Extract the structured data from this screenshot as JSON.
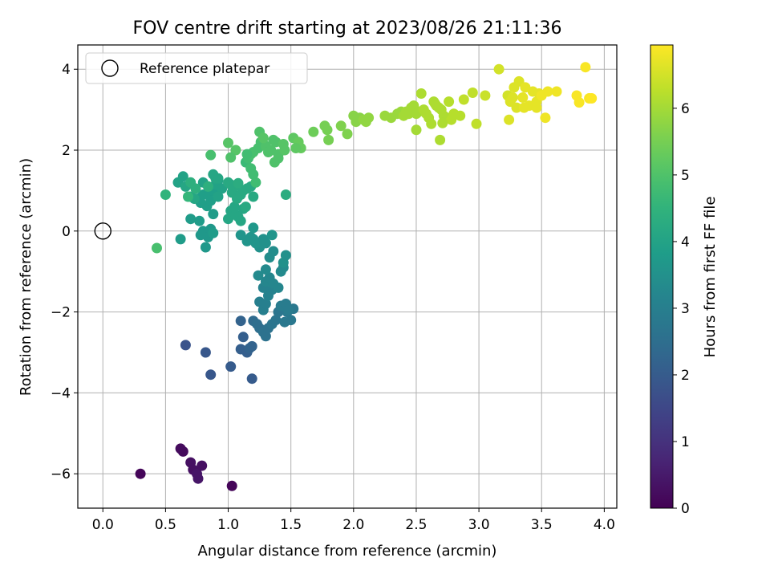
{
  "chart_data": {
    "type": "scatter",
    "title": "FOV centre drift starting at 2023/08/26 21:11:36",
    "xlabel": "Angular distance from reference (arcmin)",
    "ylabel": "Rotation from reference (arcmin)",
    "xlim": [
      -0.2,
      4.1
    ],
    "ylim": [
      -6.85,
      4.6
    ],
    "xticks": [
      0.0,
      0.5,
      1.0,
      1.5,
      2.0,
      2.5,
      3.0,
      3.5,
      4.0
    ],
    "xtick_labels": [
      "0.0",
      "0.5",
      "1.0",
      "1.5",
      "2.0",
      "2.5",
      "3.0",
      "3.5",
      "4.0"
    ],
    "yticks": [
      -6,
      -4,
      -2,
      0,
      2,
      4
    ],
    "ytick_labels": [
      "−6",
      "−4",
      "−2",
      "0",
      "2",
      "4"
    ],
    "grid": true,
    "colormap": "viridis",
    "colorbar": {
      "label": "Hours from first FF file",
      "range": [
        0,
        6.95
      ],
      "ticks": [
        0,
        1,
        2,
        3,
        4,
        5,
        6
      ],
      "tick_labels": [
        "0",
        "1",
        "2",
        "3",
        "4",
        "5",
        "6"
      ]
    },
    "legend": {
      "placement": "upper-left",
      "entries": [
        {
          "label": "Reference platepar",
          "marker": "open-circle"
        }
      ]
    },
    "reference_point": {
      "x": 0.0,
      "y": 0.0
    },
    "points": [
      [
        0.3,
        -6.0,
        0.1
      ],
      [
        0.62,
        -5.38,
        0.2
      ],
      [
        0.64,
        -5.45,
        0.2
      ],
      [
        0.7,
        -5.72,
        0.3
      ],
      [
        0.72,
        -5.9,
        0.3
      ],
      [
        0.75,
        -6.0,
        0.4
      ],
      [
        0.76,
        -6.12,
        0.4
      ],
      [
        0.79,
        -5.8,
        0.3
      ],
      [
        1.03,
        -6.3,
        0.1
      ],
      [
        0.66,
        -2.82,
        1.8
      ],
      [
        0.82,
        -3.0,
        1.9
      ],
      [
        0.86,
        -3.55,
        1.9
      ],
      [
        1.02,
        -3.35,
        2.0
      ],
      [
        1.19,
        -3.65,
        2.0
      ],
      [
        1.1,
        -2.92,
        2.1
      ],
      [
        1.12,
        -2.62,
        2.1
      ],
      [
        1.15,
        -3.0,
        2.1
      ],
      [
        1.17,
        -2.9,
        2.2
      ],
      [
        1.19,
        -2.85,
        2.2
      ],
      [
        1.1,
        -2.22,
        2.2
      ],
      [
        1.2,
        -2.22,
        2.4
      ],
      [
        1.23,
        -2.3,
        2.5
      ],
      [
        1.25,
        -2.4,
        2.5
      ],
      [
        1.28,
        -2.5,
        2.6
      ],
      [
        1.3,
        -2.6,
        2.6
      ],
      [
        1.32,
        -2.4,
        2.6
      ],
      [
        1.35,
        -2.3,
        2.7
      ],
      [
        1.38,
        -2.2,
        2.7
      ],
      [
        1.4,
        -2.0,
        2.7
      ],
      [
        1.45,
        -2.25,
        2.8
      ],
      [
        1.47,
        -2.0,
        2.8
      ],
      [
        1.5,
        -2.2,
        2.8
      ],
      [
        1.52,
        -1.92,
        2.8
      ],
      [
        1.42,
        -1.85,
        2.9
      ],
      [
        1.46,
        -1.8,
        2.9
      ],
      [
        1.48,
        -1.95,
        2.9
      ],
      [
        1.25,
        -1.75,
        3.0
      ],
      [
        1.28,
        -1.95,
        3.0
      ],
      [
        1.3,
        -1.8,
        3.0
      ],
      [
        1.32,
        -1.6,
        3.1
      ],
      [
        1.35,
        -1.45,
        3.1
      ],
      [
        1.28,
        -1.4,
        3.1
      ],
      [
        1.3,
        -1.25,
        3.2
      ],
      [
        1.33,
        -1.15,
        3.2
      ],
      [
        1.36,
        -1.3,
        3.2
      ],
      [
        1.4,
        -1.4,
        3.2
      ],
      [
        1.42,
        -1.0,
        3.3
      ],
      [
        1.44,
        -0.9,
        3.3
      ],
      [
        1.24,
        -1.1,
        3.3
      ],
      [
        1.3,
        -0.95,
        3.3
      ],
      [
        1.33,
        -0.65,
        3.4
      ],
      [
        1.36,
        -0.5,
        3.4
      ],
      [
        1.3,
        -0.3,
        3.5
      ],
      [
        1.28,
        -0.2,
        3.5
      ],
      [
        1.25,
        -0.4,
        3.5
      ],
      [
        1.22,
        -0.3,
        3.6
      ],
      [
        1.2,
        -0.2,
        3.6
      ],
      [
        1.18,
        -0.15,
        3.6
      ],
      [
        1.15,
        -0.25,
        3.6
      ],
      [
        1.1,
        -0.1,
        3.6
      ],
      [
        1.35,
        -0.1,
        3.6
      ],
      [
        1.44,
        -0.78,
        3.5
      ],
      [
        1.46,
        -0.6,
        3.5
      ],
      [
        1.2,
        0.08,
        3.7
      ],
      [
        1.29,
        -0.28,
        3.5
      ],
      [
        0.78,
        -0.1,
        3.7
      ],
      [
        0.8,
        0.0,
        3.7
      ],
      [
        0.82,
        -0.4,
        3.7
      ],
      [
        0.84,
        -0.15,
        3.7
      ],
      [
        0.86,
        0.05,
        3.7
      ],
      [
        0.88,
        -0.05,
        3.8
      ],
      [
        0.77,
        0.25,
        3.8
      ],
      [
        0.7,
        0.3,
        3.8
      ],
      [
        0.62,
        -0.2,
        3.8
      ],
      [
        0.88,
        0.42,
        3.8
      ],
      [
        0.83,
        0.62,
        3.9
      ],
      [
        0.78,
        0.7,
        3.9
      ],
      [
        0.76,
        0.8,
        3.9
      ],
      [
        0.8,
        0.9,
        3.9
      ],
      [
        0.85,
        0.95,
        3.9
      ],
      [
        0.88,
        1.0,
        3.9
      ],
      [
        0.86,
        0.75,
        3.9
      ],
      [
        0.9,
        1.15,
        4.0
      ],
      [
        0.92,
        1.25,
        4.0
      ],
      [
        0.95,
        1.05,
        4.0
      ],
      [
        0.92,
        0.85,
        4.0
      ],
      [
        0.8,
        1.2,
        4.0
      ],
      [
        0.84,
        1.1,
        4.0
      ],
      [
        0.6,
        1.2,
        4.0
      ],
      [
        0.64,
        1.35,
        4.0
      ],
      [
        0.66,
        1.1,
        4.1
      ],
      [
        0.7,
        0.85,
        4.1
      ],
      [
        0.73,
        0.8,
        4.1
      ],
      [
        0.88,
        1.4,
        4.1
      ],
      [
        0.9,
        1.3,
        4.1
      ],
      [
        0.92,
        1.3,
        4.1
      ],
      [
        1.0,
        0.3,
        4.1
      ],
      [
        1.02,
        0.5,
        4.1
      ],
      [
        1.05,
        0.6,
        4.1
      ],
      [
        1.06,
        0.4,
        4.1
      ],
      [
        1.08,
        0.35,
        4.1
      ],
      [
        1.1,
        0.25,
        4.1
      ],
      [
        1.12,
        0.55,
        4.1
      ],
      [
        1.14,
        0.6,
        4.2
      ],
      [
        1.03,
        0.95,
        4.2
      ],
      [
        1.05,
        1.1,
        4.2
      ],
      [
        1.07,
        0.8,
        4.2
      ],
      [
        1.1,
        0.9,
        4.2
      ],
      [
        1.12,
        1.0,
        4.2
      ],
      [
        1.15,
        1.05,
        4.2
      ],
      [
        1.18,
        1.1,
        4.2
      ],
      [
        1.2,
        0.85,
        4.2
      ],
      [
        1.0,
        1.2,
        4.2
      ],
      [
        1.02,
        1.15,
        4.2
      ],
      [
        1.08,
        1.18,
        4.3
      ],
      [
        1.46,
        0.9,
        4.3
      ],
      [
        0.7,
        1.2,
        4.4
      ],
      [
        0.74,
        1.05,
        4.4
      ],
      [
        0.84,
        1.1,
        4.4
      ],
      [
        0.5,
        0.9,
        4.5
      ],
      [
        0.68,
        0.85,
        4.6
      ],
      [
        0.43,
        -0.42,
        4.9
      ],
      [
        1.14,
        1.7,
        4.7
      ],
      [
        1.18,
        1.55,
        4.8
      ],
      [
        1.2,
        1.4,
        4.8
      ],
      [
        1.22,
        1.2,
        4.8
      ],
      [
        1.16,
        1.8,
        4.8
      ],
      [
        1.2,
        1.95,
        4.9
      ],
      [
        1.24,
        2.05,
        4.9
      ],
      [
        1.26,
        2.2,
        4.9
      ],
      [
        1.28,
        2.15,
        4.9
      ],
      [
        1.3,
        2.1,
        5.0
      ],
      [
        1.32,
        1.95,
        5.0
      ],
      [
        1.34,
        2.0,
        5.0
      ],
      [
        1.36,
        2.25,
        5.0
      ],
      [
        1.38,
        2.2,
        5.0
      ],
      [
        1.4,
        1.9,
        5.0
      ],
      [
        1.4,
        1.8,
        5.0
      ],
      [
        1.37,
        1.7,
        5.0
      ],
      [
        1.25,
        2.45,
        5.0
      ],
      [
        1.45,
        2.0,
        5.1
      ],
      [
        1.28,
        2.3,
        5.1
      ],
      [
        1.0,
        2.18,
        5.1
      ],
      [
        1.06,
        2.0,
        5.1
      ],
      [
        1.02,
        1.82,
        5.0
      ],
      [
        0.86,
        1.88,
        4.9
      ],
      [
        1.18,
        1.9,
        4.9
      ],
      [
        1.44,
        2.15,
        5.1
      ],
      [
        1.15,
        1.9,
        4.8
      ],
      [
        1.52,
        2.3,
        5.2
      ],
      [
        1.56,
        2.2,
        5.3
      ],
      [
        1.58,
        2.05,
        5.3
      ],
      [
        1.54,
        2.05,
        5.2
      ],
      [
        1.68,
        2.45,
        5.4
      ],
      [
        1.77,
        2.6,
        5.5
      ],
      [
        1.79,
        2.5,
        5.5
      ],
      [
        1.8,
        2.25,
        5.5
      ],
      [
        1.9,
        2.6,
        5.6
      ],
      [
        1.95,
        2.4,
        5.6
      ],
      [
        2.0,
        2.85,
        5.7
      ],
      [
        2.02,
        2.7,
        5.7
      ],
      [
        2.05,
        2.8,
        5.7
      ],
      [
        2.08,
        2.75,
        5.8
      ],
      [
        2.1,
        2.7,
        5.8
      ],
      [
        2.12,
        2.8,
        5.8
      ],
      [
        2.25,
        2.85,
        5.9
      ],
      [
        2.3,
        2.8,
        5.9
      ],
      [
        2.35,
        2.9,
        5.9
      ],
      [
        2.38,
        2.95,
        5.9
      ],
      [
        2.4,
        2.85,
        6.0
      ],
      [
        2.42,
        2.95,
        6.0
      ],
      [
        2.44,
        2.9,
        6.0
      ],
      [
        2.46,
        3.05,
        6.0
      ],
      [
        2.48,
        3.1,
        6.0
      ],
      [
        2.5,
        2.9,
        6.0
      ],
      [
        2.52,
        2.95,
        6.0
      ],
      [
        2.54,
        3.4,
        6.1
      ],
      [
        2.56,
        3.0,
        6.1
      ],
      [
        2.58,
        2.9,
        6.1
      ],
      [
        2.6,
        2.8,
        6.1
      ],
      [
        2.62,
        2.65,
        6.1
      ],
      [
        2.64,
        3.2,
        6.1
      ],
      [
        2.65,
        3.15,
        6.1
      ],
      [
        2.66,
        3.1,
        6.1
      ],
      [
        2.68,
        3.05,
        6.1
      ],
      [
        2.7,
        3.0,
        6.1
      ],
      [
        2.72,
        2.85,
        6.1
      ],
      [
        2.74,
        2.8,
        6.1
      ],
      [
        2.76,
        3.2,
        6.2
      ],
      [
        2.78,
        2.75,
        6.2
      ],
      [
        2.5,
        2.5,
        6.0
      ],
      [
        2.69,
        2.25,
        6.1
      ],
      [
        2.71,
        2.67,
        6.1
      ],
      [
        2.8,
        2.9,
        6.2
      ],
      [
        2.85,
        2.85,
        6.2
      ],
      [
        2.88,
        3.25,
        6.3
      ],
      [
        2.95,
        3.42,
        6.3
      ],
      [
        2.98,
        2.65,
        6.3
      ],
      [
        3.05,
        3.35,
        6.4
      ],
      [
        3.16,
        4.0,
        6.5
      ],
      [
        3.23,
        3.35,
        6.5
      ],
      [
        3.24,
        2.75,
        6.6
      ],
      [
        3.25,
        3.2,
        6.6
      ],
      [
        3.27,
        3.3,
        6.6
      ],
      [
        3.28,
        3.55,
        6.6
      ],
      [
        3.3,
        3.05,
        6.6
      ],
      [
        3.32,
        3.7,
        6.6
      ],
      [
        3.35,
        3.3,
        6.7
      ],
      [
        3.37,
        3.55,
        6.7
      ],
      [
        3.4,
        3.1,
        6.7
      ],
      [
        3.43,
        3.45,
        6.7
      ],
      [
        3.46,
        3.2,
        6.7
      ],
      [
        3.48,
        3.4,
        6.7
      ],
      [
        3.5,
        3.35,
        6.8
      ],
      [
        3.53,
        2.8,
        6.8
      ],
      [
        3.55,
        3.45,
        6.8
      ],
      [
        3.62,
        3.45,
        6.8
      ],
      [
        3.78,
        3.35,
        6.9
      ],
      [
        3.8,
        3.18,
        6.9
      ],
      [
        3.85,
        4.05,
        6.9
      ],
      [
        3.88,
        3.28,
        6.9
      ],
      [
        3.9,
        3.28,
        6.95
      ],
      [
        3.36,
        3.05,
        6.7
      ],
      [
        3.46,
        3.05,
        6.7
      ]
    ]
  }
}
